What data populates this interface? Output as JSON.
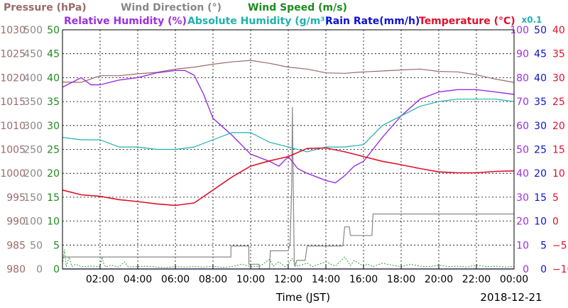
{
  "chart_data": {
    "type": "line",
    "xlabel": "Time (JST)",
    "date": "2018-12-21",
    "absolute_humidity_multiplier": "x0.1",
    "x_ticks": [
      "02:00",
      "04:00",
      "06:00",
      "08:00",
      "10:00",
      "12:00",
      "14:00",
      "16:00",
      "18:00",
      "20:00",
      "22:00",
      "00:00"
    ],
    "xlim": [
      0,
      24
    ],
    "grid": true,
    "legend": [
      {
        "name": "Pressure (hPa)",
        "color": "#9a6a6a"
      },
      {
        "name": "Wind Direction (°)",
        "color": "#888888"
      },
      {
        "name": "Wind Speed (m/s)",
        "color": "#1f8a1f"
      },
      {
        "name": "Relative Humidity (%)",
        "color": "#9b30e0"
      },
      {
        "name": "Absolute Humidity (g/m³)",
        "color": "#20b0b0"
      },
      {
        "name": "Rain Rate(mm/h)",
        "color": "#1010d0"
      },
      {
        "name": "Temperature (°C)",
        "color": "#e0102c"
      }
    ],
    "axes": {
      "pressure": {
        "ylim": [
          980,
          1030
        ],
        "ticks": [
          "980",
          "985",
          "990",
          "995",
          "1000",
          "1005",
          "1010",
          "1015",
          "1020",
          "1025",
          "1030"
        ],
        "color": "#9a6a6a"
      },
      "wind_direction": {
        "ylim": [
          0,
          500
        ],
        "ticks": [
          "0",
          "50",
          "100",
          "150",
          "200",
          "250",
          "300",
          "350",
          "400",
          "450",
          "500"
        ],
        "color": "#888888"
      },
      "wind_speed": {
        "ylim": [
          0,
          50
        ],
        "ticks": [
          "0",
          "5",
          "10",
          "15",
          "20",
          "25",
          "30",
          "35",
          "40",
          "45",
          "50"
        ],
        "color": "#1f8a1f"
      },
      "humidity": {
        "ylim": [
          0,
          100
        ],
        "ticks": [
          "0",
          "10",
          "20",
          "30",
          "40",
          "50",
          "60",
          "70",
          "80",
          "90",
          "100"
        ],
        "color": "#9b30e0"
      },
      "rain_rate": {
        "ylim": [
          0,
          50
        ],
        "ticks": [
          "0",
          "5",
          "10",
          "15",
          "20",
          "25",
          "30",
          "35",
          "40",
          "45",
          "50"
        ],
        "color": "#1010d0"
      },
      "temperature": {
        "ylim": [
          -10,
          40
        ],
        "ticks": [
          "−10",
          "−5",
          "0",
          "5",
          "10",
          "15",
          "20",
          "25",
          "30",
          "35",
          "40"
        ],
        "color": "#e0102c"
      }
    },
    "series": [
      {
        "key": "pressure",
        "axis": "pressure",
        "x": [
          0,
          1,
          2,
          3,
          4,
          5,
          6,
          7,
          8,
          9,
          10,
          11,
          12,
          13,
          14,
          15,
          16,
          17,
          18,
          19,
          20,
          21,
          22,
          23,
          24
        ],
        "y": [
          1019.1,
          1019.0,
          1020.4,
          1020.4,
          1020.8,
          1021.1,
          1021.8,
          1022.2,
          1022.8,
          1023.3,
          1023.6,
          1023.0,
          1022.2,
          1021.8,
          1021.0,
          1020.9,
          1021.2,
          1021.4,
          1021.6,
          1021.8,
          1021.3,
          1021.2,
          1020.6,
          1019.7,
          1019.0
        ]
      },
      {
        "key": "wind_direction",
        "axis": "wind_direction",
        "x": [
          0,
          8.95,
          8.96,
          9.9,
          9.91,
          10.45,
          10.46,
          11.0,
          11.05,
          12.0,
          12.1,
          12.18,
          12.22,
          12.27,
          12.32,
          12.36,
          12.45,
          12.9,
          13.0,
          14.9,
          15.0,
          15.25,
          15.3,
          16.45,
          16.5,
          24
        ],
        "y": [
          25,
          25,
          48,
          48,
          10,
          10,
          0,
          0,
          38,
          38,
          55,
          170,
          338,
          150,
          10,
          5,
          18,
          18,
          48,
          48,
          88,
          88,
          70,
          70,
          115,
          115
        ]
      },
      {
        "key": "wind_speed",
        "axis": "wind_speed",
        "x": [
          0,
          0.1,
          0.2,
          0.35,
          0.5,
          0.7,
          1.0,
          1.5,
          2.0,
          2.1,
          2.2,
          2.3,
          2.6,
          3.0,
          3.3,
          3.5,
          4.0,
          4.5,
          5.0,
          5.5,
          6.0,
          6.5,
          7.0,
          7.5,
          8.0,
          8.5,
          9.0,
          9.5,
          10.0,
          10.5,
          11.0,
          11.2,
          11.5,
          11.8,
          12.0,
          12.2,
          12.5,
          13.0,
          13.3,
          13.5,
          14.0,
          14.5,
          15.0,
          15.3,
          15.5,
          16.0,
          16.2,
          16.5,
          17.0,
          17.5,
          18.0,
          18.5,
          19.0,
          19.5,
          20.0,
          20.5,
          21.0,
          21.5,
          22.0,
          22.5,
          23.0,
          23.5,
          24.0
        ],
        "y": [
          1,
          4,
          0.5,
          2.5,
          0.5,
          1,
          0.5,
          0.6,
          0.5,
          2.5,
          1,
          0.4,
          0.8,
          0.4,
          1.5,
          0.4,
          0.5,
          0.6,
          0.4,
          0.3,
          0.5,
          0.4,
          0.5,
          0.4,
          0.6,
          0.3,
          0.5,
          1,
          0.5,
          0.6,
          2,
          0.6,
          1.5,
          0.5,
          1,
          2.2,
          0.6,
          1.2,
          0.5,
          0.8,
          1.5,
          0.6,
          2.5,
          0.7,
          1.8,
          0.6,
          1,
          0.5,
          1.2,
          0.8,
          0.5,
          1,
          0.6,
          0.5,
          0.8,
          0.5,
          0.6,
          0.4,
          0.8,
          0.5,
          0.6,
          0.4,
          0.5
        ]
      },
      {
        "key": "relative_humidity",
        "axis": "humidity",
        "x": [
          0,
          1,
          1.5,
          2,
          3,
          4,
          5,
          6,
          6.5,
          7,
          7.5,
          8,
          9,
          10,
          11,
          11.5,
          12,
          12.5,
          13,
          14,
          14.5,
          15,
          15.5,
          16,
          17,
          18,
          19,
          20,
          21,
          22,
          23,
          24
        ],
        "y": [
          76,
          80,
          77,
          77,
          79,
          80,
          82,
          83,
          83,
          81,
          73,
          63,
          56,
          48,
          45,
          43,
          47,
          42,
          40,
          37,
          36,
          39,
          43,
          45,
          55,
          64,
          71,
          74,
          75,
          75,
          74,
          73
        ]
      },
      {
        "key": "absolute_humidity",
        "axis": "humidity",
        "x": [
          0,
          1,
          2,
          3,
          4,
          5,
          6,
          7,
          8,
          9,
          10,
          11,
          12,
          13,
          14,
          15,
          16,
          17,
          18,
          19,
          20,
          21,
          22,
          23,
          24
        ],
        "y": [
          55,
          54,
          54,
          51,
          51,
          50,
          50,
          51,
          54,
          57,
          57,
          53,
          51,
          49,
          51,
          51,
          52,
          60,
          64,
          68,
          70,
          71,
          71,
          71,
          70
        ]
      },
      {
        "key": "temperature",
        "axis": "temperature",
        "x": [
          0,
          1,
          2,
          3,
          4,
          5,
          6,
          7,
          8,
          9,
          10,
          11,
          12,
          13,
          14,
          15,
          16,
          17,
          18,
          19,
          20,
          21,
          22,
          23,
          24
        ],
        "y": [
          6.5,
          5.5,
          5.2,
          4.5,
          4.1,
          3.6,
          3.3,
          3.8,
          6.5,
          9.2,
          11.5,
          12.6,
          13.5,
          15.2,
          15.3,
          14.5,
          13.5,
          12.5,
          11.8,
          11.0,
          10.3,
          10.1,
          10.1,
          10.4,
          10.5
        ]
      },
      {
        "key": "rain_rate",
        "axis": "rain_rate",
        "x": [
          0,
          24
        ],
        "y": [
          0,
          0
        ]
      }
    ]
  }
}
